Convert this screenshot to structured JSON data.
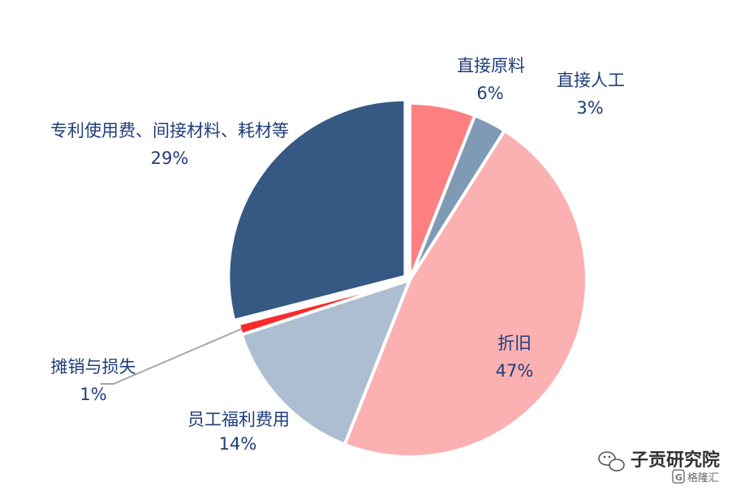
{
  "chart_data": {
    "type": "pie",
    "slices": [
      {
        "label": "直接原料",
        "pct_label": "6%",
        "value": 6,
        "color": "#fd7f80",
        "explode": 0
      },
      {
        "label": "直接人工",
        "pct_label": "3%",
        "value": 3,
        "color": "#7f9ab5",
        "explode": 0
      },
      {
        "label": "折旧",
        "pct_label": "47%",
        "value": 47,
        "color": "#fbb0b1",
        "explode": 0
      },
      {
        "label": "员工福利费用",
        "pct_label": "14%",
        "value": 14,
        "color": "#adbed2",
        "explode": 0
      },
      {
        "label": "摊销与损失",
        "pct_label": "1%",
        "value": 1,
        "color": "#fa2a2a",
        "explode": 0
      },
      {
        "label": "专利使用费、间接材料、耗材等",
        "pct_label": "29%",
        "value": 29,
        "color": "#355983",
        "explode": 1
      }
    ],
    "start_angle_deg": 0,
    "direction": "clockwise"
  },
  "watermark": {
    "account": "子贡研究院",
    "source": "格隆汇"
  }
}
